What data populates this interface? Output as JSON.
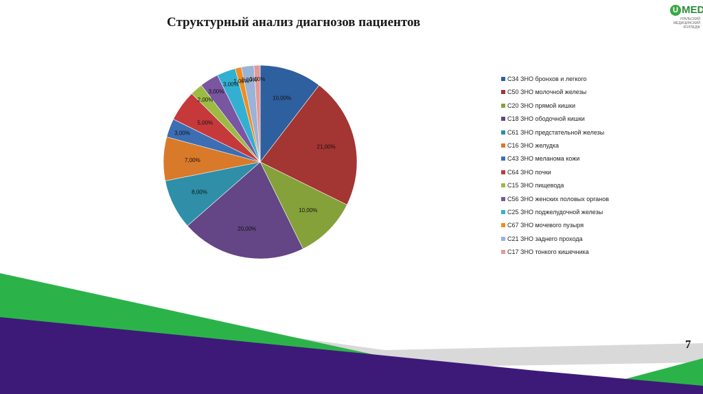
{
  "slide": {
    "title": "Структурный анализ диагнозов пациентов",
    "page_number": "7"
  },
  "logo": {
    "letter": "U",
    "text": "MED",
    "subtitle_lines": [
      "УРАЛЬСКИЙ",
      "МЕДИЦИНСКИЙ",
      "КОЛЛЕДЖ"
    ]
  },
  "colors": {
    "band_green": "#2bb34a",
    "band_purple": "#3d1a78",
    "band_gray": "#d9d9d9"
  },
  "chart_data": {
    "type": "pie",
    "title": "",
    "legend_position": "right",
    "start_angle_deg": 0,
    "direction": "clockwise",
    "categories": [
      "C34 ЗНО бронхов и легкого",
      "C50 ЗНО молочной железы",
      "C20 ЗНО прямой кишки",
      "C18 ЗНО ободочной кишки",
      "C61 ЗНО предстательной железы",
      "C16 ЗНО желудка",
      "C43 ЗНО меланома кожи",
      "C64 ЗНО почки",
      "C15 ЗНО пищевода",
      "C56 ЗНО женских половых органов",
      "C25 ЗНО поджелудочной железы",
      "C67 ЗНО  мочевого пузыря",
      "C21 ЗНО заднего прохода",
      "C17 ЗНО тонкого кишечника"
    ],
    "values": [
      10,
      21,
      10,
      20,
      8,
      7,
      3,
      5,
      2,
      3,
      3,
      1,
      2,
      1
    ],
    "data_labels": [
      "10,00%",
      "21,00%",
      "10,00%",
      "20,00%",
      "8,00%",
      "7,00%",
      "3,00%",
      "5,00%",
      "2,00%",
      "3,00%",
      "3,00%",
      "1,00%",
      "2,00%",
      "1,00%"
    ],
    "colors": [
      "#2e5f9e",
      "#a33533",
      "#85a13a",
      "#644586",
      "#2f8ea8",
      "#d9792a",
      "#3c6eb4",
      "#c6393a",
      "#9bbb42",
      "#7a55a1",
      "#33b0d1",
      "#f28c1f",
      "#99b3d9",
      "#e39a99"
    ]
  }
}
